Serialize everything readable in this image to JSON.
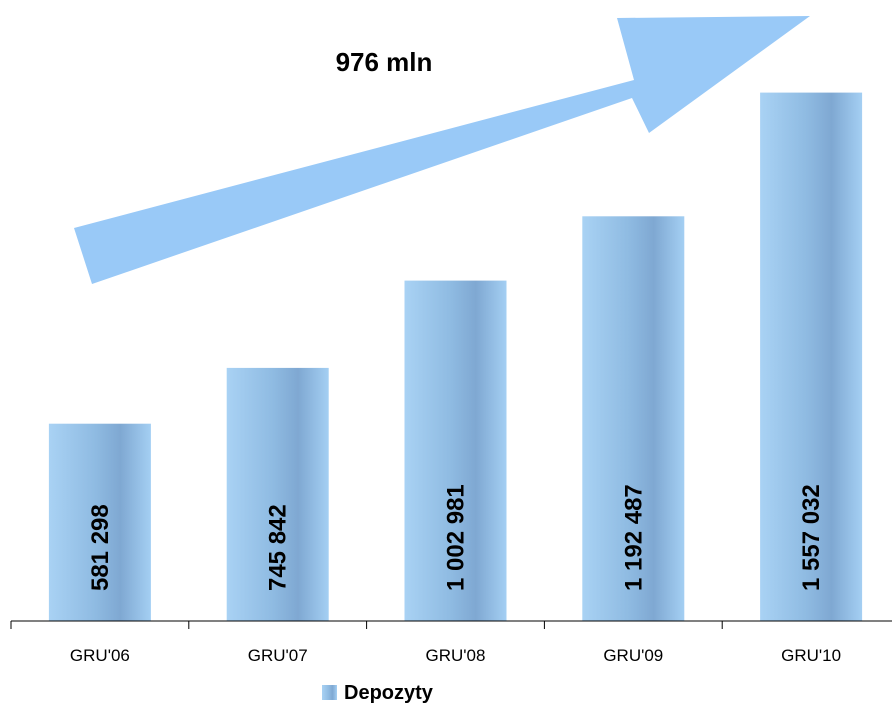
{
  "chart_data": {
    "type": "bar",
    "title": "",
    "xlabel": "",
    "ylabel": "",
    "categories": [
      "GRU'06",
      "GRU'07",
      "GRU'08",
      "GRU'09",
      "GRU'10"
    ],
    "series": [
      {
        "name": "Depozyty",
        "values": [
          581298,
          745842,
          1002981,
          1192487,
          1557032
        ],
        "labels": [
          "581 298",
          "745 842",
          "1 002 981",
          "1 192 487",
          "1 557 032"
        ],
        "color": "#8FBEE8"
      }
    ],
    "ylim": [
      0,
      1830000
    ],
    "grid": false,
    "legend": "bottom",
    "annotation": {
      "text": "976 mln",
      "arrow_color": "#99C9F7"
    }
  }
}
